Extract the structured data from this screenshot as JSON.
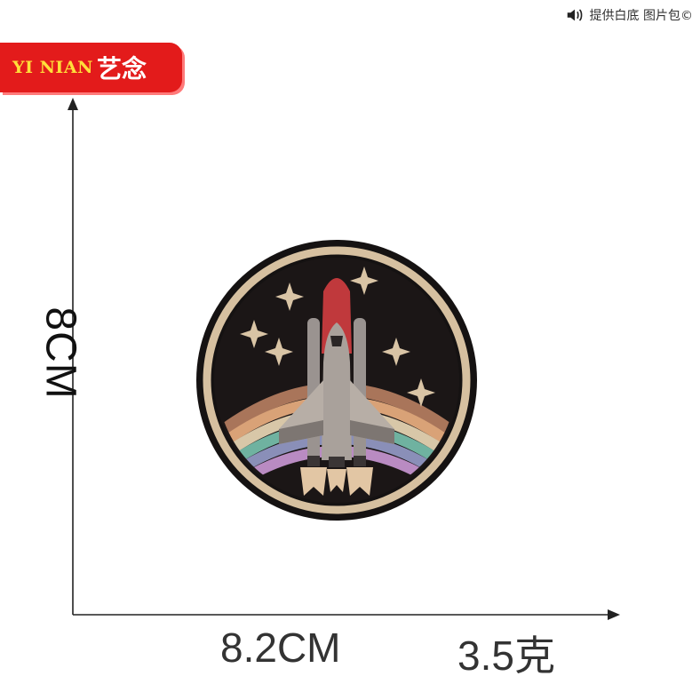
{
  "notice": {
    "text": "提供白底 图片包©",
    "icon": "speaker-icon"
  },
  "brand": {
    "latin": "YI NIAN",
    "chinese": "艺念",
    "bg_color": "#e31b1b",
    "latin_color": "#ffdf3a"
  },
  "dimensions": {
    "height": "8CM",
    "width": "8.2CM",
    "weight": "3.5克"
  },
  "product": {
    "image": "rocket-space-shuttle-embroidered-patch"
  }
}
